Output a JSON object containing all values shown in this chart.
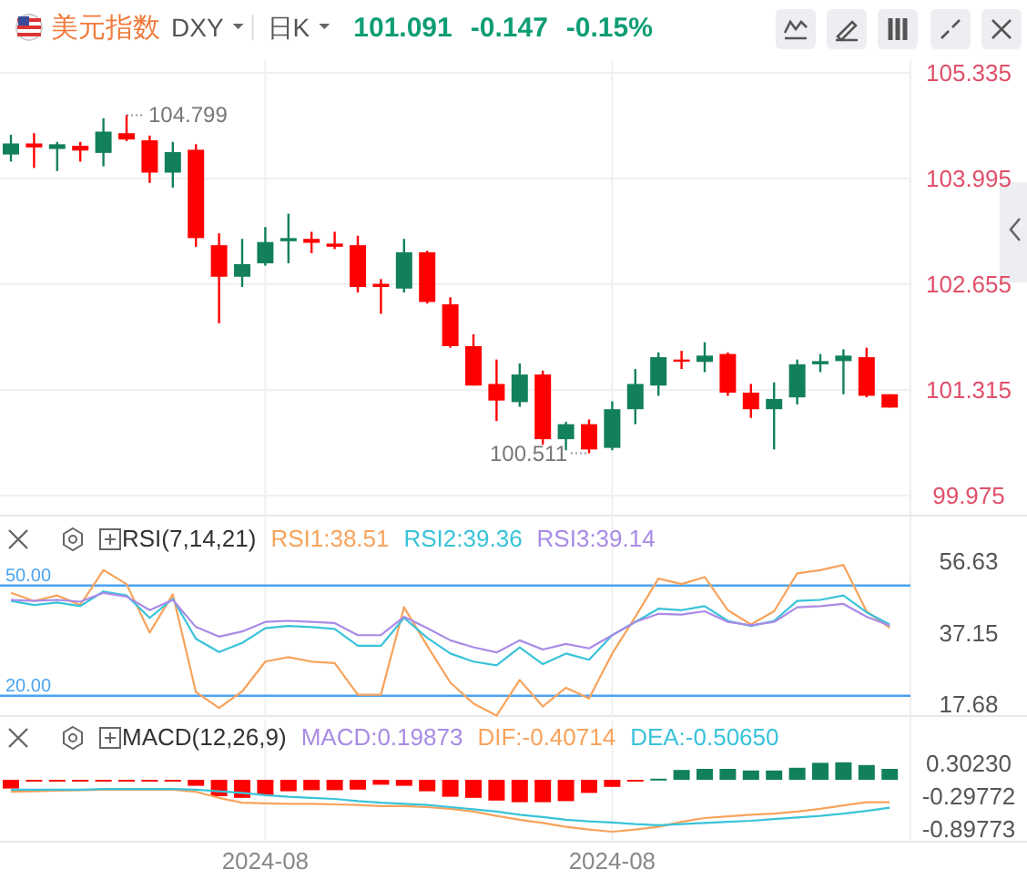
{
  "chart_data": [
    {
      "type": "candlestick",
      "title": "美元指数",
      "annotations": [
        "DXY",
        "日K",
        "101.091",
        "-0.147",
        "-0.15%",
        "104.799",
        "100.511"
      ],
      "categories": [
        null,
        null,
        null,
        null,
        null,
        null,
        null,
        null,
        null,
        null,
        null,
        "2024-08",
        null,
        null,
        null,
        null,
        null,
        null,
        null,
        null,
        null,
        null,
        null,
        null,
        null,
        null,
        "2024-08",
        null,
        null,
        null,
        null,
        null,
        null,
        null,
        null,
        null,
        null,
        null,
        null
      ],
      "ohlc": [
        [
          104.3,
          104.55,
          104.21,
          104.44
        ],
        [
          104.44,
          104.57,
          104.13,
          104.39
        ],
        [
          104.37,
          104.46,
          104.09,
          104.43
        ],
        [
          104.41,
          104.46,
          104.21,
          104.35
        ],
        [
          104.32,
          104.76,
          104.15,
          104.59
        ],
        [
          104.57,
          104.799,
          104.47,
          104.49
        ],
        [
          104.48,
          104.54,
          103.94,
          104.07
        ],
        [
          104.07,
          104.46,
          103.88,
          104.33
        ],
        [
          104.36,
          104.43,
          103.13,
          103.24
        ],
        [
          103.15,
          103.3,
          102.16,
          102.75
        ],
        [
          102.75,
          103.23,
          102.62,
          102.91
        ],
        [
          102.92,
          103.38,
          102.89,
          103.19
        ],
        [
          103.2,
          103.55,
          102.92,
          103.24
        ],
        [
          103.23,
          103.32,
          103.05,
          103.18
        ],
        [
          103.17,
          103.32,
          103.1,
          103.13
        ],
        [
          103.15,
          103.27,
          102.55,
          102.62
        ],
        [
          102.66,
          102.72,
          102.28,
          102.62
        ],
        [
          102.6,
          103.23,
          102.55,
          103.06
        ],
        [
          103.06,
          103.08,
          102.41,
          102.43
        ],
        [
          102.4,
          102.49,
          101.85,
          101.87
        ],
        [
          101.87,
          102.02,
          101.37,
          101.37
        ],
        [
          101.39,
          101.7,
          100.92,
          101.18
        ],
        [
          101.16,
          101.65,
          101.1,
          101.51
        ],
        [
          101.51,
          101.56,
          100.62,
          100.69
        ],
        [
          100.69,
          100.91,
          100.55,
          100.88
        ],
        [
          100.88,
          100.94,
          100.511,
          100.56
        ],
        [
          100.58,
          101.17,
          100.55,
          101.07
        ],
        [
          101.07,
          101.58,
          100.88,
          101.39
        ],
        [
          101.37,
          101.79,
          101.24,
          101.73
        ],
        [
          101.7,
          101.81,
          101.58,
          101.68
        ],
        [
          101.67,
          101.92,
          101.54,
          101.75
        ],
        [
          101.77,
          101.79,
          101.24,
          101.28
        ],
        [
          101.28,
          101.39,
          100.96,
          101.07
        ],
        [
          101.07,
          101.41,
          100.56,
          101.2
        ],
        [
          101.22,
          101.7,
          101.13,
          101.64
        ],
        [
          101.64,
          101.77,
          101.54,
          101.68
        ],
        [
          101.68,
          101.83,
          101.26,
          101.75
        ],
        [
          101.73,
          101.85,
          101.22,
          101.24
        ],
        [
          101.26,
          101.26,
          101.091,
          101.091
        ]
      ],
      "ylim": [
        99.975,
        105.335
      ],
      "yticks": [
        105.335,
        103.995,
        102.655,
        101.315,
        99.975
      ],
      "grid": true,
      "tick_labels": "y"
    },
    {
      "type": "line",
      "title": "RSI(7,14,21)",
      "legend": "top",
      "grid": "x",
      "tick_labels": "y",
      "categories": [
        null,
        null,
        null,
        null,
        null,
        null,
        null,
        null,
        null,
        null,
        null,
        "2024-08",
        null,
        null,
        null,
        null,
        null,
        null,
        null,
        null,
        null,
        null,
        null,
        null,
        null,
        null,
        "2024-08",
        null,
        null,
        null,
        null,
        null,
        null,
        null,
        null,
        null,
        null,
        null,
        null
      ],
      "ylim": [
        14.5,
        56.63
      ],
      "yticks": [
        56.63,
        37.15,
        17.68
      ],
      "ref_lines": [
        {
          "axis": "y",
          "value": 50,
          "label": "50.00",
          "color": "#4aa3f0"
        },
        {
          "axis": "y",
          "value": 20,
          "label": "20.00",
          "color": "#4aa3f0"
        }
      ],
      "series": [
        {
          "name": "RSI1:38.51",
          "color": "#f7a35c",
          "values": [
            48.0,
            45.8,
            47.3,
            44.7,
            54.2,
            50.4,
            37.2,
            47.6,
            21.0,
            16.7,
            21.2,
            29.3,
            30.5,
            29.3,
            28.9,
            20.3,
            20.3,
            44.1,
            33.6,
            23.6,
            17.9,
            14.6,
            24.3,
            17.1,
            22.2,
            19.3,
            31.5,
            41.5,
            51.9,
            50.4,
            52.3,
            43.3,
            39.4,
            43.0,
            53.3,
            54.2,
            55.6,
            43.0,
            38.5
          ]
        },
        {
          "name": "RSI2:39.36",
          "color": "#39c3d9",
          "values": [
            45.8,
            44.7,
            45.4,
            44.4,
            48.4,
            47.3,
            41.2,
            46.4,
            35.5,
            31.9,
            34.4,
            38.4,
            39.0,
            38.7,
            38.2,
            33.6,
            33.6,
            41.2,
            35.8,
            31.5,
            29.3,
            28.3,
            33.2,
            28.6,
            31.5,
            29.8,
            36.5,
            40.1,
            43.7,
            43.3,
            44.4,
            40.4,
            39.0,
            40.4,
            45.8,
            46.1,
            47.3,
            42.7,
            39.4
          ]
        },
        {
          "name": "RSI3:39.14",
          "color": "#a98be6",
          "values": [
            46.1,
            45.8,
            46.1,
            45.6,
            48.0,
            47.0,
            43.3,
            46.1,
            38.7,
            36.1,
            37.5,
            40.1,
            40.4,
            40.1,
            39.8,
            36.5,
            36.5,
            41.5,
            38.4,
            35.1,
            33.2,
            31.8,
            35.1,
            32.6,
            34.1,
            32.9,
            36.5,
            40.1,
            42.3,
            42.1,
            43.0,
            40.1,
            39.2,
            40.1,
            44.1,
            44.4,
            45.0,
            41.5,
            39.1
          ]
        }
      ]
    },
    {
      "type": "bar",
      "title": "MACD(12,26,9)",
      "legend": "top",
      "grid": "x",
      "categories": [
        null,
        null,
        null,
        null,
        null,
        null,
        null,
        null,
        null,
        null,
        null,
        "2024-08",
        null,
        null,
        null,
        null,
        null,
        null,
        null,
        null,
        null,
        null,
        null,
        null,
        null,
        null,
        "2024-08",
        null,
        null,
        null,
        null,
        null,
        null,
        null,
        null,
        null,
        null,
        null,
        null
      ],
      "ylim": [
        -1.0,
        0.4
      ],
      "yticks": [
        {
          "value": 0.3023,
          "label": "0.30230"
        },
        {
          "value": -0.29772,
          "label": "-0.29772"
        },
        {
          "value": -0.89773,
          "label": "-0.89773"
        }
      ],
      "series": [
        {
          "name": "MACD:0.19873",
          "type": "bar",
          "color": "#a98be6",
          "colors": [
            "#ff0000",
            "#ff0000",
            "#ff0000",
            "#ff0000",
            "#ff0000",
            "#ff0000",
            "#ff0000",
            "#ff0000",
            "#ff0000",
            "#ff0000",
            "#ff0000",
            "#ff0000",
            "#ff0000",
            "#ff0000",
            "#ff0000",
            "#ff0000",
            "#ff0000",
            "#ff0000",
            "#ff0000",
            "#ff0000",
            "#ff0000",
            "#ff0000",
            "#ff0000",
            "#ff0000",
            "#ff0000",
            "#ff0000",
            "#ff0000",
            "#ff0000",
            "#12805c",
            "#12805c",
            "#12805c",
            "#12805c",
            "#12805c",
            "#12805c",
            "#12805c",
            "#12805c",
            "#12805c",
            "#12805c",
            "#12805c"
          ],
          "values": [
            -0.16,
            -0.02,
            -0.02,
            -0.02,
            -0.02,
            -0.01,
            -0.01,
            -0.01,
            -0.11,
            -0.3,
            -0.33,
            -0.28,
            -0.21,
            -0.19,
            -0.19,
            -0.18,
            -0.09,
            -0.11,
            -0.21,
            -0.31,
            -0.33,
            -0.38,
            -0.41,
            -0.41,
            -0.39,
            -0.24,
            -0.13,
            -0.02,
            0.02,
            0.18,
            0.2,
            0.2,
            0.17,
            0.17,
            0.22,
            0.31,
            0.32,
            0.27,
            0.2
          ]
        },
        {
          "name": "DIF:-0.40714",
          "type": "line",
          "color": "#f7a35c",
          "values": [
            -0.22,
            -0.21,
            -0.2,
            -0.19,
            -0.18,
            -0.18,
            -0.18,
            -0.18,
            -0.22,
            -0.33,
            -0.42,
            -0.43,
            -0.44,
            -0.44,
            -0.45,
            -0.46,
            -0.48,
            -0.48,
            -0.5,
            -0.53,
            -0.58,
            -0.66,
            -0.73,
            -0.79,
            -0.86,
            -0.91,
            -0.95,
            -0.91,
            -0.86,
            -0.77,
            -0.7,
            -0.67,
            -0.64,
            -0.62,
            -0.58,
            -0.53,
            -0.47,
            -0.41,
            -0.41
          ]
        },
        {
          "name": "DEA:-0.50650",
          "type": "line",
          "color": "#39c3d9",
          "values": [
            -0.18,
            -0.18,
            -0.18,
            -0.18,
            -0.17,
            -0.17,
            -0.17,
            -0.17,
            -0.18,
            -0.21,
            -0.24,
            -0.28,
            -0.31,
            -0.33,
            -0.35,
            -0.39,
            -0.42,
            -0.44,
            -0.46,
            -0.5,
            -0.54,
            -0.58,
            -0.64,
            -0.68,
            -0.73,
            -0.76,
            -0.78,
            -0.81,
            -0.83,
            -0.81,
            -0.79,
            -0.77,
            -0.75,
            -0.72,
            -0.69,
            -0.66,
            -0.62,
            -0.57,
            -0.51
          ]
        }
      ]
    }
  ]
}
